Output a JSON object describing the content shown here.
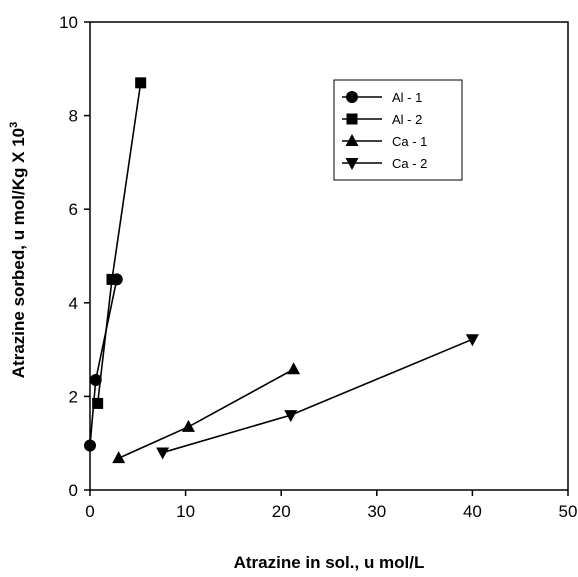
{
  "chart_data": {
    "type": "line",
    "title": "",
    "xlabel": "Atrazine in sol., u mol/L",
    "ylabel": "Atrazine sorbed, u mol/Kg X 10",
    "ylabel_sup": "3",
    "xlim": [
      0,
      50
    ],
    "ylim": [
      0,
      10
    ],
    "xticks": [
      "0",
      "10",
      "20",
      "30",
      "40",
      "50"
    ],
    "yticks": [
      "0",
      "2",
      "4",
      "6",
      "8",
      "10"
    ],
    "grid": false,
    "legend_position": "top-right",
    "series": [
      {
        "name": "Al - 1",
        "marker": "circle",
        "x": [
          0.0,
          0.6,
          2.8
        ],
        "y": [
          0.95,
          2.35,
          4.5
        ]
      },
      {
        "name": "Al - 2",
        "marker": "square",
        "x": [
          0.8,
          2.3,
          5.3
        ],
        "y": [
          1.85,
          4.5,
          8.7
        ]
      },
      {
        "name": "Ca - 1",
        "marker": "triangle-up",
        "x": [
          3.0,
          10.3,
          21.3
        ],
        "y": [
          0.68,
          1.35,
          2.58
        ]
      },
      {
        "name": "Ca - 2",
        "marker": "triangle-down",
        "x": [
          7.6,
          21.0,
          40.0
        ],
        "y": [
          0.8,
          1.6,
          3.22
        ]
      }
    ]
  }
}
